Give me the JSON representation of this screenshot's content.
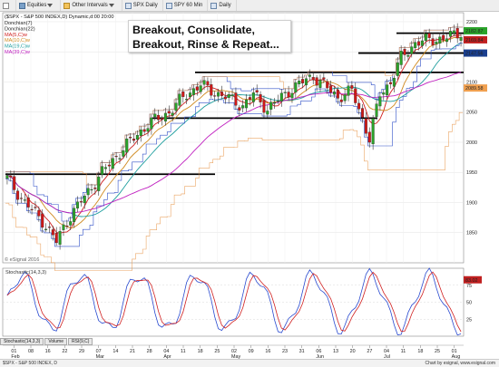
{
  "toolbar": {
    "items": [
      {
        "label": "",
        "icon": "box-icon"
      },
      {
        "label": "Equities",
        "icon": "folder-icon"
      },
      {
        "label": "Other Intervals",
        "icon": "grid-icon"
      },
      {
        "label": "SPX Daily",
        "icon": "calendar-icon"
      },
      {
        "label": "SPY 60 Min",
        "icon": "calendar-icon"
      },
      {
        "label": "Daily",
        "icon": "calendar-icon"
      }
    ]
  },
  "chart_data": [
    {
      "type": "candlestick",
      "title": "($SPX - S&P 500 INDEX,D) Dynamic,d:00 20:00",
      "annotation": "Breakout, Consolidate, Breakout, Rinse & Repeat...",
      "legend": [
        {
          "label": "Donchian(7)",
          "color": "#222222"
        },
        {
          "label": "Donchian(22)",
          "color": "#222222"
        },
        {
          "label": "MA(5,C)w",
          "color": "#d02020"
        },
        {
          "label": "MA(10,C)w",
          "color": "#d08a20"
        },
        {
          "label": "MA(19,C)w",
          "color": "#1e9e9e"
        },
        {
          "label": "MA(39,C)w",
          "color": "#c020c0"
        }
      ],
      "y_ticks": [
        1850,
        1900,
        1950,
        2000,
        2050,
        2100,
        2150,
        2200
      ],
      "ylim": [
        1800,
        2215
      ],
      "price_tags": [
        {
          "value": "2182.87",
          "color": "#2aa32a"
        },
        {
          "value": "2169.84",
          "color": "#c02020"
        },
        {
          "value": "2147.56",
          "color": "#1a3f8f"
        },
        {
          "value": "2089.58",
          "color": "#f0a050"
        }
      ],
      "support_resistance_levels": [
        1947,
        2116,
        2181,
        2040,
        2148
      ],
      "up_color": "#2aa32a",
      "down_color": "#d01818",
      "copyright": "© eSignal 2016"
    },
    {
      "type": "line",
      "title": "Stochastic(14,3,3)",
      "ylim": [
        0,
        100
      ],
      "y_ticks": [
        25,
        50,
        75
      ],
      "price_tag": "83.02",
      "series": [
        {
          "color": "#2a4bd0"
        },
        {
          "color": "#d02020"
        }
      ]
    }
  ],
  "x_axis": {
    "day_ticks": [
      "01",
      "08",
      "16",
      "22",
      "29",
      "07",
      "14",
      "21",
      "28",
      "04",
      "11",
      "18",
      "25",
      "02",
      "09",
      "16",
      "23",
      "31",
      "06",
      "13",
      "20",
      "27",
      "04",
      "11",
      "18",
      "25",
      "01"
    ],
    "month_labels": [
      {
        "label": "Feb",
        "at": "01"
      },
      {
        "label": "Mar",
        "at": "07"
      },
      {
        "label": "Apr",
        "at": "04"
      },
      {
        "label": "May",
        "at": "02"
      },
      {
        "label": "Jun",
        "at": "06"
      },
      {
        "label": "Jul",
        "at": "04"
      },
      {
        "label": "Aug",
        "at": "01"
      }
    ]
  },
  "bottom_tabs": [
    "Stochastic(14,3,3)",
    "Volume",
    "RSI(9,C)"
  ],
  "footer": {
    "left": "$SPX - S&P 500 INDEX, D",
    "right": "Chart by esignal, www.esignal.com"
  }
}
